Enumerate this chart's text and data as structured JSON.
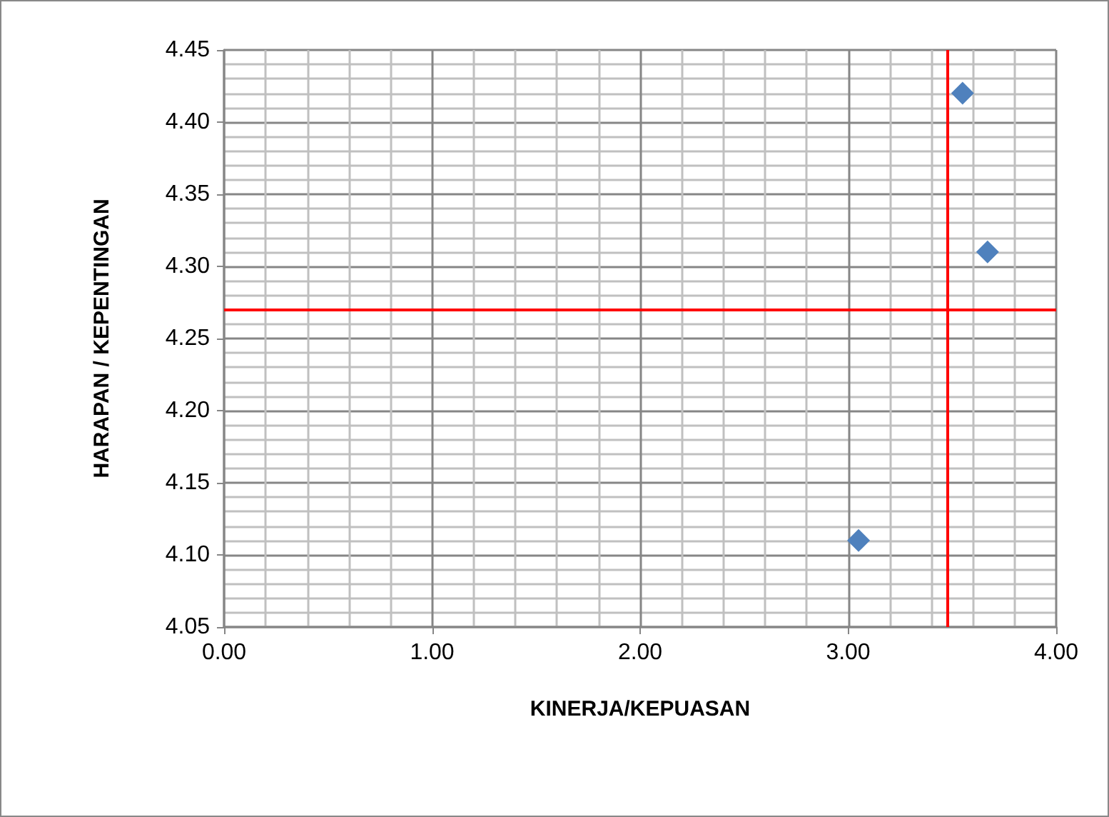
{
  "chart_data": {
    "type": "scatter",
    "xlabel": "KINERJA/KEPUASAN",
    "ylabel": "HARAPAN / KEPENTINGAN",
    "x": [
      3.55,
      3.67,
      3.05
    ],
    "series": [
      {
        "color": "#4f81bd",
        "values": [
          4.42,
          4.31,
          4.11
        ]
      }
    ],
    "marker": "diamond",
    "grid": true,
    "xlim": [
      0,
      4
    ],
    "xticks": [
      {
        "value": 0,
        "label": "0.00"
      },
      {
        "value": 1,
        "label": "1.00"
      },
      {
        "value": 2,
        "label": "2.00"
      },
      {
        "value": 3,
        "label": "3.00"
      },
      {
        "value": 4,
        "label": "4.00"
      }
    ],
    "ylim": [
      4.05,
      4.45
    ],
    "yticks": [
      {
        "value": 4.05,
        "label": "4.05"
      },
      {
        "value": 4.1,
        "label": "4.10"
      },
      {
        "value": 4.15,
        "label": "4.15"
      },
      {
        "value": 4.2,
        "label": "4.20"
      },
      {
        "value": 4.25,
        "label": "4.25"
      },
      {
        "value": 4.3,
        "label": "4.30"
      },
      {
        "value": 4.35,
        "label": "4.35"
      },
      {
        "value": 4.4,
        "label": "4.40"
      },
      {
        "value": 4.45,
        "label": "4.45"
      }
    ],
    "ref_lines": [
      {
        "axis": "x",
        "value": 3.48,
        "color": "#ff0000"
      },
      {
        "axis": "y",
        "value": 4.27,
        "color": "#ff0000"
      }
    ]
  }
}
